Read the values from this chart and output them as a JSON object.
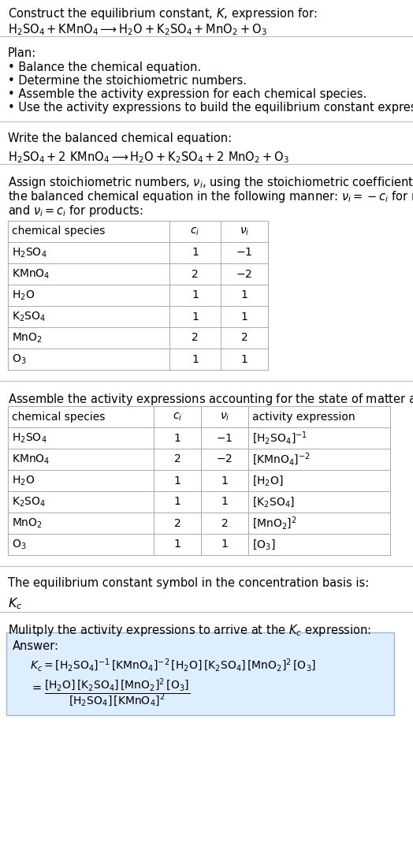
{
  "bg_color": "#ffffff",
  "text_color": "#000000",
  "title_line1": "Construct the equilibrium constant, $K$, expression for:",
  "title_line2": "$\\mathrm{H_2SO_4 + KMnO_4 \\longrightarrow H_2O + K_2SO_4 + MnO_2 + O_3}$",
  "plan_header": "Plan:",
  "plan_items": [
    "• Balance the chemical equation.",
    "• Determine the stoichiometric numbers.",
    "• Assemble the activity expression for each chemical species.",
    "• Use the activity expressions to build the equilibrium constant expression."
  ],
  "balanced_header": "Write the balanced chemical equation:",
  "balanced_eq": "$\\mathrm{H_2SO_4 + 2\\ KMnO_4 \\longrightarrow H_2O + K_2SO_4 + 2\\ MnO_2 + O_3}$",
  "stoich_header_parts": [
    "Assign stoichiometric numbers, $\\nu_i$, using the stoichiometric coefficients, $c_i$, from",
    "the balanced chemical equation in the following manner: $\\nu_i = -c_i$ for reactants",
    "and $\\nu_i = c_i$ for products:"
  ],
  "table1_cols": [
    "chemical species",
    "$c_i$",
    "$\\nu_i$"
  ],
  "table1_rows": [
    [
      "$\\mathrm{H_2SO_4}$",
      "1",
      "$-1$"
    ],
    [
      "$\\mathrm{KMnO_4}$",
      "2",
      "$-2$"
    ],
    [
      "$\\mathrm{H_2O}$",
      "1",
      "1"
    ],
    [
      "$\\mathrm{K_2SO_4}$",
      "1",
      "1"
    ],
    [
      "$\\mathrm{MnO_2}$",
      "2",
      "2"
    ],
    [
      "$\\mathrm{O_3}$",
      "1",
      "1"
    ]
  ],
  "activity_header": "Assemble the activity expressions accounting for the state of matter and $\\nu_i$:",
  "table2_cols": [
    "chemical species",
    "$c_i$",
    "$\\nu_i$",
    "activity expression"
  ],
  "table2_rows": [
    [
      "$\\mathrm{H_2SO_4}$",
      "1",
      "$-1$",
      "$[\\mathrm{H_2SO_4}]^{-1}$"
    ],
    [
      "$\\mathrm{KMnO_4}$",
      "2",
      "$-2$",
      "$[\\mathrm{KMnO_4}]^{-2}$"
    ],
    [
      "$\\mathrm{H_2O}$",
      "1",
      "1",
      "$[\\mathrm{H_2O}]$"
    ],
    [
      "$\\mathrm{K_2SO_4}$",
      "1",
      "1",
      "$[\\mathrm{K_2SO_4}]$"
    ],
    [
      "$\\mathrm{MnO_2}$",
      "2",
      "2",
      "$[\\mathrm{MnO_2}]^2$"
    ],
    [
      "$\\mathrm{O_3}$",
      "1",
      "1",
      "$[\\mathrm{O_3}]$"
    ]
  ],
  "kc_header": "The equilibrium constant symbol in the concentration basis is:",
  "kc_symbol": "$K_c$",
  "multiply_header": "Mulitply the activity expressions to arrive at the $K_c$ expression:",
  "answer_label": "Answer:",
  "answer_line1": "$K_c = [\\mathrm{H_2SO_4}]^{-1}\\,[\\mathrm{KMnO_4}]^{-2}\\,[\\mathrm{H_2O}]\\,[\\mathrm{K_2SO_4}]\\,[\\mathrm{MnO_2}]^2\\,[\\mathrm{O_3}]$",
  "answer_line2_eq": "$=$",
  "answer_line2_frac": "$\\dfrac{[\\mathrm{H_2O}]\\,[\\mathrm{K_2SO_4}]\\,[\\mathrm{MnO_2}]^2\\,[\\mathrm{O_3}]}{[\\mathrm{H_2SO_4}]\\,[\\mathrm{KMnO_4}]^2}$",
  "answer_box_color": "#ddeeff",
  "answer_box_border": "#9ab8d0",
  "separator_color": "#bbbbbb",
  "font_size": 10.5
}
